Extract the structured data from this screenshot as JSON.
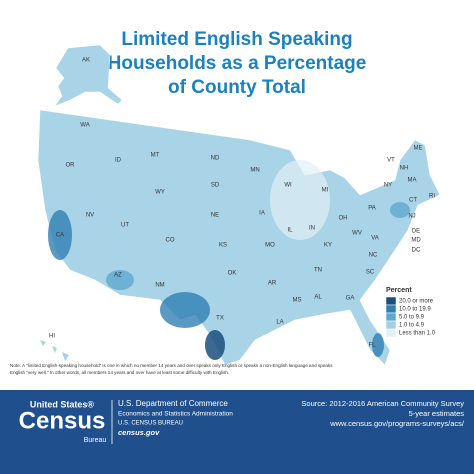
{
  "title": [
    "Limited English Speaking",
    "Households as a Percentage",
    "of County Total"
  ],
  "states": [
    "AK",
    "WA",
    "OR",
    "CA",
    "NV",
    "ID",
    "MT",
    "WY",
    "UT",
    "AZ",
    "CO",
    "NM",
    "ND",
    "SD",
    "NE",
    "KS",
    "OK",
    "TX",
    "MN",
    "IA",
    "MO",
    "AR",
    "LA",
    "WI",
    "IL",
    "MS",
    "MI",
    "IN",
    "KY",
    "TN",
    "AL",
    "OH",
    "WV",
    "GA",
    "FL",
    "SC",
    "NC",
    "VA",
    "PA",
    "NY",
    "VT",
    "NH",
    "ME",
    "MA",
    "RI",
    "CT",
    "NJ",
    "DE",
    "MD",
    "DC",
    "HI"
  ],
  "legend": {
    "title": "Percent",
    "items": [
      {
        "label": "20.0 or more",
        "color": "#1b4e7c"
      },
      {
        "label": "10.0 to 19.9",
        "color": "#2f7fb3"
      },
      {
        "label": "5.0 to 9.9",
        "color": "#5ea8d0"
      },
      {
        "label": "1.0 to 4.9",
        "color": "#a4d0e6"
      },
      {
        "label": "Less than 1.0",
        "color": "#e1f0f7"
      }
    ]
  },
  "note": [
    "Note: A “limited English-speaking household” is one in which no member 14 years and over speaks only English or speaks a non-English language and speaks",
    "English “very well.” In other words, all members 14 years and over have at least some difficulty with English."
  ],
  "footer": {
    "logo": [
      "United States®",
      "Census",
      "Bureau"
    ],
    "agency": [
      "U.S. Department of Commerce",
      "Economics and Statistics Administration",
      "U.S. CENSUS BUREAU",
      "census.gov"
    ],
    "source": [
      "Source: 2012-2016 American Community Survey",
      "5-year estimates",
      "www.census.gov/programs-surveys/acs/"
    ]
  }
}
